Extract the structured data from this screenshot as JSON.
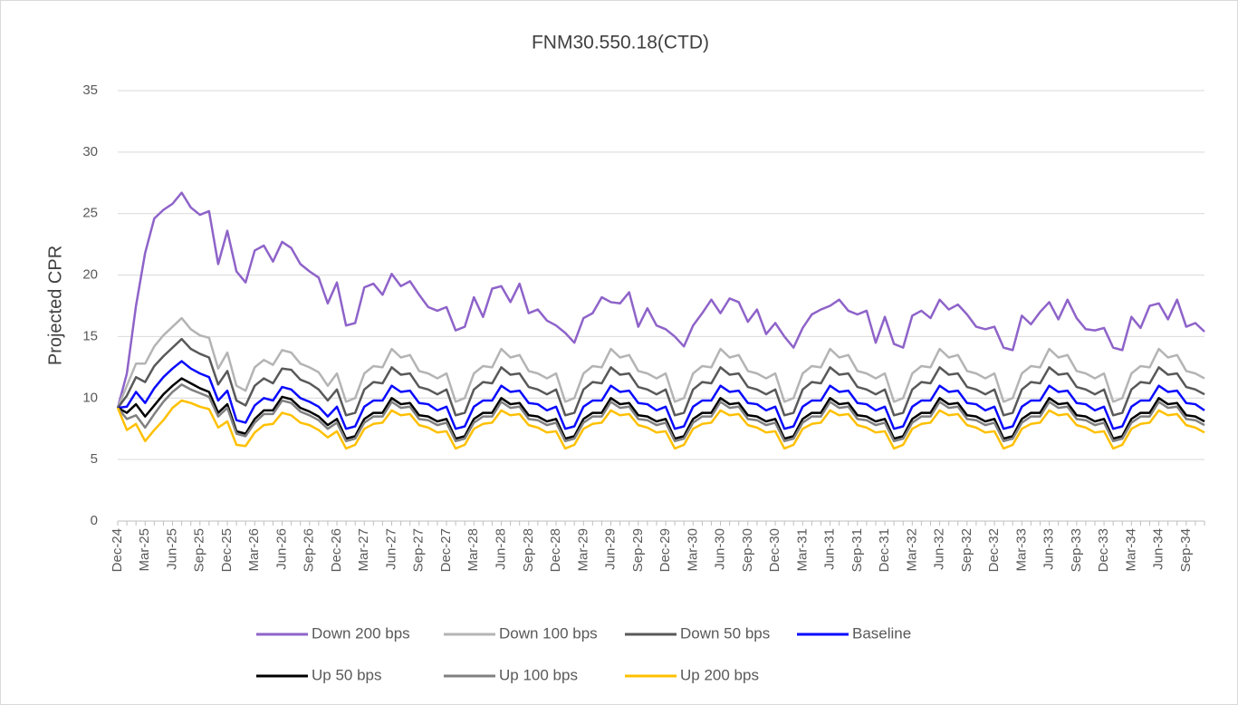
{
  "chart_data": {
    "type": "line",
    "title": "FNM30.550.18(CTD)",
    "y_label": "Projected CPR",
    "categories": [
      "Dec-24",
      null,
      null,
      "Mar-25",
      null,
      null,
      "Jun-25",
      null,
      null,
      "Sep-25",
      null,
      null,
      "Dec-25",
      null,
      null,
      "Mar-26",
      null,
      null,
      "Jun-26",
      null,
      null,
      "Sep-26",
      null,
      null,
      "Dec-26",
      null,
      null,
      "Mar-27",
      null,
      null,
      "Jun-27",
      null,
      null,
      "Sep-27",
      null,
      null,
      "Dec-27",
      null,
      null,
      "Mar-28",
      null,
      null,
      "Jun-28",
      null,
      null,
      "Sep-28",
      null,
      null,
      "Dec-28",
      null,
      null,
      "Mar-29",
      null,
      null,
      "Jun-29",
      null,
      null,
      "Sep-29",
      null,
      null,
      "Dec-29",
      null,
      null,
      "Mar-30",
      null,
      null,
      "Jun-30",
      null,
      null,
      "Sep-30",
      null,
      null,
      "Dec-30",
      null,
      null,
      "Mar-31",
      null,
      null,
      "Jun-31",
      null,
      null,
      "Sep-31",
      null,
      null,
      "Dec-31",
      null,
      null,
      "Mar-32",
      null,
      null,
      "Jun-32",
      null,
      null,
      "Sep-32",
      null,
      null,
      "Dec-32",
      null,
      null,
      "Mar-33",
      null,
      null,
      "Jun-33",
      null,
      null,
      "Sep-33",
      null,
      null,
      "Dec-33",
      null,
      null,
      "Mar-34",
      null,
      null,
      "Jun-34",
      null,
      null,
      "Sep-34",
      null,
      null
    ],
    "ylim": [
      0,
      35
    ],
    "yticks": [
      0,
      5,
      10,
      15,
      20,
      25,
      30,
      35
    ],
    "grid": true,
    "series": [
      {
        "name": "Down 200 bps",
        "color": "#8e63c9",
        "values": [
          9.2,
          12,
          17.5,
          21.8,
          24.6,
          25.3,
          25.8,
          26.7,
          25.5,
          24.9,
          25.2,
          20.9,
          23.6,
          20.3,
          19.4,
          22,
          22.4,
          21.1,
          22.7,
          22.2,
          20.9,
          20.3,
          19.8,
          17.7,
          19.4,
          15.9,
          16.1,
          19,
          19.3,
          18.4,
          20.1,
          19.1,
          19.5,
          18.4,
          17.4,
          17.1,
          17.4,
          15.5,
          15.8,
          18.2,
          16.6,
          18.9,
          19.1,
          17.8,
          19.3,
          16.9,
          17.2,
          16.3,
          15.9,
          15.3,
          14.5,
          16.5,
          16.9,
          18.2,
          17.8,
          17.7,
          18.6,
          15.8,
          17.3,
          15.9,
          15.6,
          15,
          14.2,
          15.9,
          16.9,
          18,
          16.9,
          18.1,
          17.8,
          16.2,
          17.2,
          15.2,
          16.1,
          15,
          14.1,
          15.7,
          16.8,
          17.2,
          17.5,
          18,
          17.1,
          16.8,
          17.1,
          14.5,
          16.6,
          14.4,
          14.1,
          16.7,
          17.1,
          16.5,
          18,
          17.2,
          17.6,
          16.8,
          15.8,
          15.6,
          15.8,
          14.1,
          13.9,
          16.7,
          16,
          17,
          17.8,
          16.4,
          18,
          16.5,
          15.6,
          15.5,
          15.7,
          14.1,
          13.9,
          16.6,
          15.7,
          17.5,
          17.7,
          16.4,
          18,
          15.8,
          16.1,
          15.4
        ]
      },
      {
        "name": "Down 100 bps",
        "color": "#b4b4b4",
        "values": [
          9.2,
          11.0,
          12.8,
          12.8,
          14.2,
          15.1,
          15.8,
          16.5,
          15.6,
          15.1,
          14.9,
          12.4,
          13.7,
          11.0,
          10.6,
          12.5,
          13.1,
          12.7,
          13.9,
          13.7,
          12.8,
          12.5,
          12.1,
          11.0,
          12.0,
          9.7,
          10.0,
          12.0,
          12.6,
          12.5,
          14.0,
          13.3,
          13.5,
          12.2,
          12.0,
          11.6,
          12.0,
          9.7,
          10.0,
          12.0,
          12.6,
          12.5,
          14.0,
          13.3,
          13.5,
          12.2,
          12.0,
          11.6,
          12.0,
          9.7,
          10.0,
          12.0,
          12.6,
          12.5,
          14.0,
          13.3,
          13.5,
          12.2,
          12.0,
          11.6,
          12.0,
          9.7,
          10.0,
          12.0,
          12.6,
          12.5,
          14.0,
          13.3,
          13.5,
          12.2,
          12.0,
          11.6,
          12.0,
          9.7,
          10.0,
          12.0,
          12.6,
          12.5,
          14.0,
          13.3,
          13.5,
          12.2,
          12.0,
          11.6,
          12.0,
          9.7,
          10.0,
          12.0,
          12.6,
          12.5,
          14.0,
          13.3,
          13.5,
          12.2,
          12.0,
          11.6,
          12.0,
          9.7,
          10.0,
          12.0,
          12.6,
          12.5,
          14.0,
          13.3,
          13.5,
          12.2,
          12.0,
          11.6,
          12.0,
          9.7,
          10.0,
          12.0,
          12.6,
          12.5,
          14.0,
          13.3,
          13.5,
          12.2,
          12.0,
          11.6
        ]
      },
      {
        "name": "Down 50 bps",
        "color": "#595959",
        "values": [
          9.2,
          10.2,
          11.7,
          11.3,
          12.6,
          13.4,
          14.1,
          14.8,
          14.0,
          13.6,
          13.3,
          11.1,
          12.2,
          9.8,
          9.4,
          11.0,
          11.6,
          11.2,
          12.4,
          12.3,
          11.5,
          11.2,
          10.7,
          9.8,
          10.7,
          8.6,
          8.8,
          10.7,
          11.3,
          11.2,
          12.5,
          11.9,
          12.0,
          10.9,
          10.7,
          10.3,
          10.7,
          8.6,
          8.8,
          10.7,
          11.3,
          11.2,
          12.5,
          11.9,
          12.0,
          10.9,
          10.7,
          10.3,
          10.7,
          8.6,
          8.8,
          10.7,
          11.3,
          11.2,
          12.5,
          11.9,
          12.0,
          10.9,
          10.7,
          10.3,
          10.7,
          8.6,
          8.8,
          10.7,
          11.3,
          11.2,
          12.5,
          11.9,
          12.0,
          10.9,
          10.7,
          10.3,
          10.7,
          8.6,
          8.8,
          10.7,
          11.3,
          11.2,
          12.5,
          11.9,
          12.0,
          10.9,
          10.7,
          10.3,
          10.7,
          8.6,
          8.8,
          10.7,
          11.3,
          11.2,
          12.5,
          11.9,
          12.0,
          10.9,
          10.7,
          10.3,
          10.7,
          8.6,
          8.8,
          10.7,
          11.3,
          11.2,
          12.5,
          11.9,
          12.0,
          10.9,
          10.7,
          10.3,
          10.7,
          8.6,
          8.8,
          10.7,
          11.3,
          11.2,
          12.5,
          11.9,
          12.0,
          10.9,
          10.7,
          10.3
        ]
      },
      {
        "name": "Baseline",
        "color": "#0a0aff",
        "values": [
          9.2,
          9.3,
          10.5,
          9.6,
          10.8,
          11.7,
          12.4,
          13.0,
          12.4,
          12.0,
          11.7,
          9.8,
          10.6,
          8.2,
          8.0,
          9.4,
          10.0,
          9.8,
          10.9,
          10.7,
          10.0,
          9.7,
          9.3,
          8.5,
          9.3,
          7.5,
          7.7,
          9.3,
          9.8,
          9.8,
          11.0,
          10.5,
          10.6,
          9.6,
          9.5,
          9.0,
          9.3,
          7.5,
          7.7,
          9.3,
          9.8,
          9.8,
          11.0,
          10.5,
          10.6,
          9.6,
          9.5,
          9.0,
          9.3,
          7.5,
          7.7,
          9.3,
          9.8,
          9.8,
          11.0,
          10.5,
          10.6,
          9.6,
          9.5,
          9.0,
          9.3,
          7.5,
          7.7,
          9.3,
          9.8,
          9.8,
          11.0,
          10.5,
          10.6,
          9.6,
          9.5,
          9.0,
          9.3,
          7.5,
          7.7,
          9.3,
          9.8,
          9.8,
          11.0,
          10.5,
          10.6,
          9.6,
          9.5,
          9.0,
          9.3,
          7.5,
          7.7,
          9.3,
          9.8,
          9.8,
          11.0,
          10.5,
          10.6,
          9.6,
          9.5,
          9.0,
          9.3,
          7.5,
          7.7,
          9.3,
          9.8,
          9.8,
          11.0,
          10.5,
          10.6,
          9.6,
          9.5,
          9.0,
          9.3,
          7.5,
          7.7,
          9.3,
          9.8,
          9.8,
          11.0,
          10.5,
          10.6,
          9.6,
          9.5,
          9.0
        ]
      },
      {
        "name": "Up 50 bps",
        "color": "#000000",
        "values": [
          9.2,
          8.8,
          9.5,
          8.5,
          9.4,
          10.3,
          11.0,
          11.6,
          11.2,
          10.8,
          10.5,
          8.8,
          9.5,
          7.3,
          7.1,
          8.3,
          9.0,
          9.0,
          10.1,
          9.9,
          9.2,
          8.9,
          8.5,
          7.8,
          8.3,
          6.7,
          6.9,
          8.3,
          8.8,
          8.8,
          10.0,
          9.5,
          9.6,
          8.6,
          8.5,
          8.1,
          8.3,
          6.7,
          6.9,
          8.3,
          8.8,
          8.8,
          10.0,
          9.5,
          9.6,
          8.6,
          8.5,
          8.1,
          8.3,
          6.7,
          6.9,
          8.3,
          8.8,
          8.8,
          10.0,
          9.5,
          9.6,
          8.6,
          8.5,
          8.1,
          8.3,
          6.7,
          6.9,
          8.3,
          8.8,
          8.8,
          10.0,
          9.5,
          9.6,
          8.6,
          8.5,
          8.1,
          8.3,
          6.7,
          6.9,
          8.3,
          8.8,
          8.8,
          10.0,
          9.5,
          9.6,
          8.6,
          8.5,
          8.1,
          8.3,
          6.7,
          6.9,
          8.3,
          8.8,
          8.8,
          10.0,
          9.5,
          9.6,
          8.6,
          8.5,
          8.1,
          8.3,
          6.7,
          6.9,
          8.3,
          8.8,
          8.8,
          10.0,
          9.5,
          9.6,
          8.6,
          8.5,
          8.1,
          8.3,
          6.7,
          6.9,
          8.3,
          8.8,
          8.8,
          10.0,
          9.5,
          9.6,
          8.6,
          8.5,
          8.1
        ]
      },
      {
        "name": "Up 100 bps",
        "color": "#808080",
        "values": [
          9.2,
          8.3,
          8.6,
          7.6,
          8.7,
          9.7,
          10.5,
          11.1,
          10.7,
          10.4,
          10.1,
          8.5,
          9.2,
          7.1,
          6.9,
          8.0,
          8.7,
          8.7,
          9.8,
          9.6,
          8.9,
          8.6,
          8.2,
          7.5,
          8.0,
          6.5,
          6.7,
          8.0,
          8.5,
          8.5,
          9.7,
          9.2,
          9.3,
          8.3,
          8.2,
          7.8,
          8.0,
          6.5,
          6.7,
          8.0,
          8.5,
          8.5,
          9.7,
          9.2,
          9.3,
          8.3,
          8.2,
          7.8,
          8.0,
          6.5,
          6.7,
          8.0,
          8.5,
          8.5,
          9.7,
          9.2,
          9.3,
          8.3,
          8.2,
          7.8,
          8.0,
          6.5,
          6.7,
          8.0,
          8.5,
          8.5,
          9.7,
          9.2,
          9.3,
          8.3,
          8.2,
          7.8,
          8.0,
          6.5,
          6.7,
          8.0,
          8.5,
          8.5,
          9.7,
          9.2,
          9.3,
          8.3,
          8.2,
          7.8,
          8.0,
          6.5,
          6.7,
          8.0,
          8.5,
          8.5,
          9.7,
          9.2,
          9.3,
          8.3,
          8.2,
          7.8,
          8.0,
          6.5,
          6.7,
          8.0,
          8.5,
          8.5,
          9.7,
          9.2,
          9.3,
          8.3,
          8.2,
          7.8,
          8.0,
          6.5,
          6.7,
          8.0,
          8.5,
          8.5,
          9.7,
          9.2,
          9.3,
          8.3,
          8.2,
          7.8
        ]
      },
      {
        "name": "Up 200 bps",
        "color": "#ffc000",
        "values": [
          9.2,
          7.4,
          7.9,
          6.5,
          7.4,
          8.2,
          9.2,
          9.8,
          9.6,
          9.3,
          9.1,
          7.6,
          8.1,
          6.2,
          6.1,
          7.2,
          7.8,
          7.9,
          8.8,
          8.6,
          8.0,
          7.8,
          7.4,
          6.8,
          7.3,
          5.9,
          6.2,
          7.5,
          7.9,
          8.0,
          9.0,
          8.6,
          8.7,
          7.8,
          7.6,
          7.2,
          7.3,
          5.9,
          6.2,
          7.5,
          7.9,
          8.0,
          9.0,
          8.6,
          8.7,
          7.8,
          7.6,
          7.2,
          7.3,
          5.9,
          6.2,
          7.5,
          7.9,
          8.0,
          9.0,
          8.6,
          8.7,
          7.8,
          7.6,
          7.2,
          7.3,
          5.9,
          6.2,
          7.5,
          7.9,
          8.0,
          9.0,
          8.6,
          8.7,
          7.8,
          7.6,
          7.2,
          7.3,
          5.9,
          6.2,
          7.5,
          7.9,
          8.0,
          9.0,
          8.6,
          8.7,
          7.8,
          7.6,
          7.2,
          7.3,
          5.9,
          6.2,
          7.5,
          7.9,
          8.0,
          9.0,
          8.6,
          8.7,
          7.8,
          7.6,
          7.2,
          7.3,
          5.9,
          6.2,
          7.5,
          7.9,
          8.0,
          9.0,
          8.6,
          8.7,
          7.8,
          7.6,
          7.2,
          7.3,
          5.9,
          6.2,
          7.5,
          7.9,
          8.0,
          9.0,
          8.6,
          8.7,
          7.8,
          7.6,
          7.2
        ]
      }
    ]
  }
}
